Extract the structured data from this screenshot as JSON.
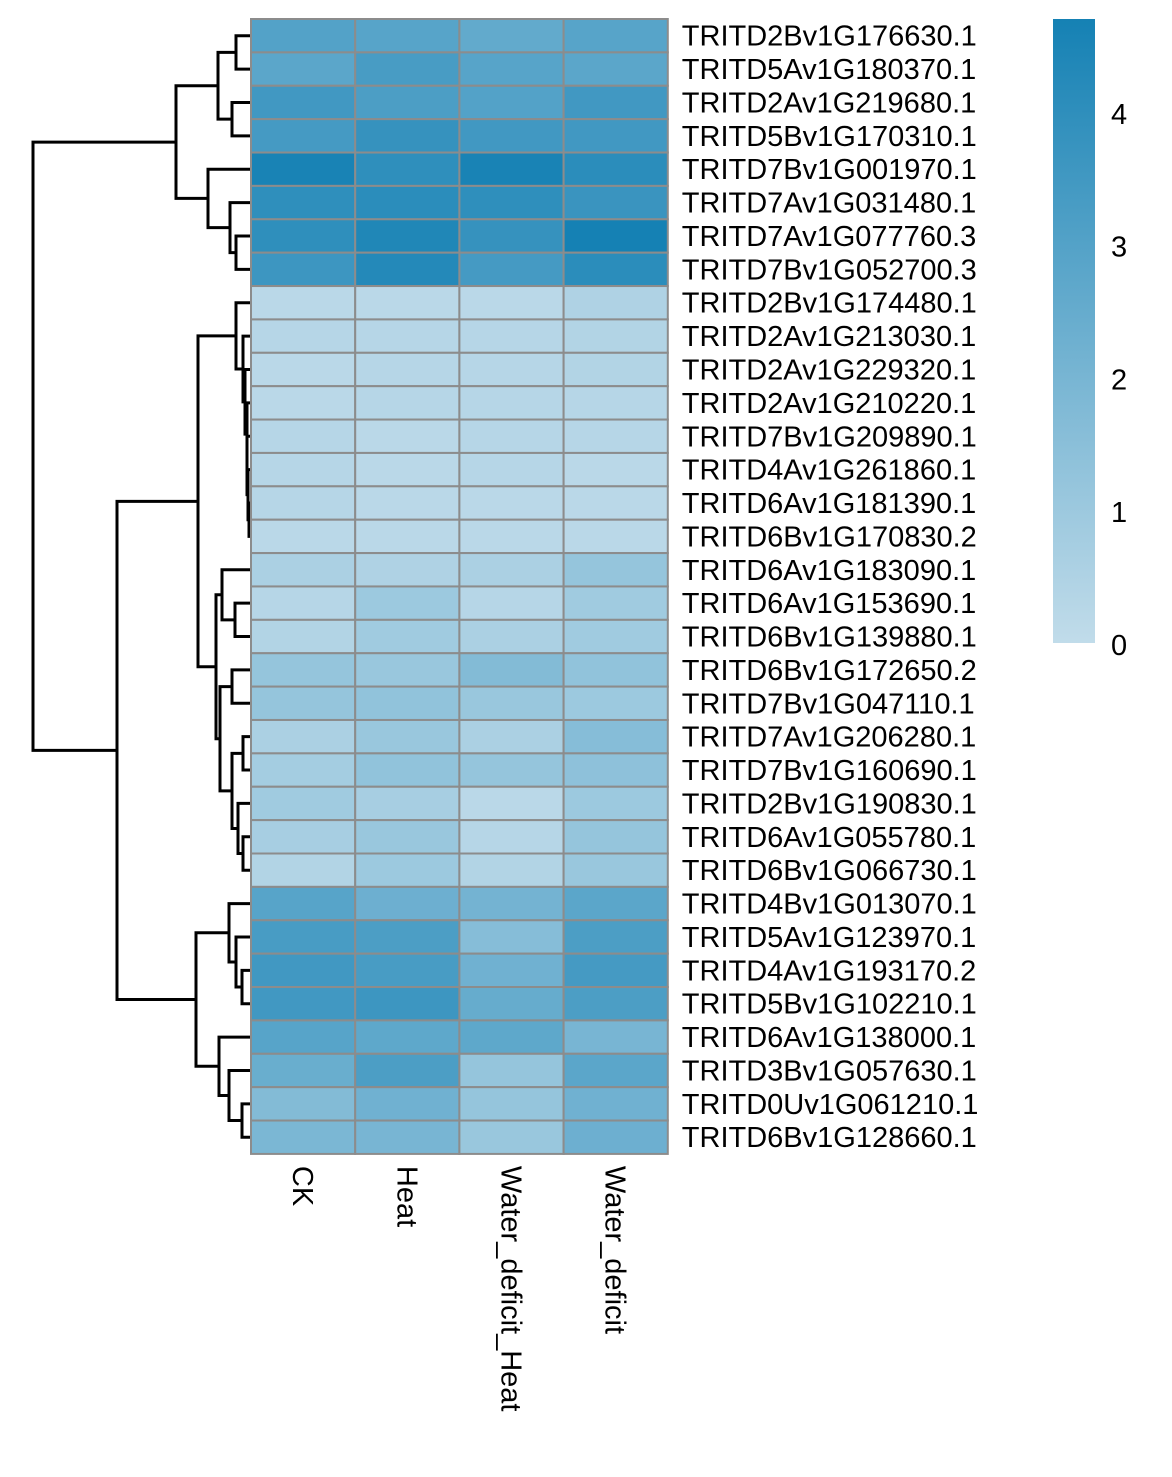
{
  "chart_data": {
    "type": "heatmap",
    "columns": [
      "CK",
      "Heat",
      "Water_deficit_Heat",
      "Water_deficit"
    ],
    "rows": [
      "TRITD2Bv1G176630.1",
      "TRITD5Av1G180370.1",
      "TRITD2Av1G219680.1",
      "TRITD5Bv1G170310.1",
      "TRITD7Bv1G001970.1",
      "TRITD7Av1G031480.1",
      "TRITD7Av1G077760.3",
      "TRITD7Bv1G052700.3",
      "TRITD2Bv1G174480.1",
      "TRITD2Av1G213030.1",
      "TRITD2Av1G229320.1",
      "TRITD2Av1G210220.1",
      "TRITD7Bv1G209890.1",
      "TRITD4Av1G261860.1",
      "TRITD6Av1G181390.1",
      "TRITD6Bv1G170830.2",
      "TRITD6Av1G183090.1",
      "TRITD6Av1G153690.1",
      "TRITD6Bv1G139880.1",
      "TRITD6Bv1G172650.2",
      "TRITD7Bv1G047110.1",
      "TRITD7Av1G206280.1",
      "TRITD7Bv1G160690.1",
      "TRITD2Bv1G190830.1",
      "TRITD6Av1G055780.1",
      "TRITD6Bv1G066730.1",
      "TRITD4Bv1G013070.1",
      "TRITD5Av1G123970.1",
      "TRITD4Av1G193170.2",
      "TRITD5Bv1G102210.1",
      "TRITD6Av1G138000.1",
      "TRITD3Bv1G057630.1",
      "TRITD0Uv1G061210.1",
      "TRITD6Bv1G128660.1"
    ],
    "values": [
      [
        3.0,
        2.9,
        2.6,
        2.9
      ],
      [
        2.8,
        3.3,
        2.9,
        2.8
      ],
      [
        3.5,
        3.2,
        3.0,
        3.5
      ],
      [
        3.4,
        3.8,
        3.5,
        3.5
      ],
      [
        4.6,
        4.0,
        4.6,
        4.1
      ],
      [
        4.0,
        4.1,
        4.0,
        3.7
      ],
      [
        4.0,
        4.4,
        3.8,
        4.7
      ],
      [
        3.6,
        4.3,
        3.4,
        4.1
      ],
      [
        0.2,
        0.2,
        0.2,
        0.5
      ],
      [
        0.3,
        0.3,
        0.3,
        0.4
      ],
      [
        0.2,
        0.3,
        0.3,
        0.4
      ],
      [
        0.2,
        0.3,
        0.3,
        0.3
      ],
      [
        0.3,
        0.2,
        0.3,
        0.3
      ],
      [
        0.3,
        0.2,
        0.3,
        0.2
      ],
      [
        0.3,
        0.2,
        0.2,
        0.2
      ],
      [
        0.2,
        0.2,
        0.2,
        0.2
      ],
      [
        0.6,
        0.5,
        0.6,
        1.2
      ],
      [
        0.3,
        1.0,
        0.3,
        0.9
      ],
      [
        0.4,
        0.9,
        0.6,
        0.9
      ],
      [
        1.2,
        1.1,
        1.7,
        1.3
      ],
      [
        1.2,
        1.3,
        1.1,
        1.0
      ],
      [
        0.6,
        1.1,
        0.6,
        1.6
      ],
      [
        0.8,
        1.3,
        1.2,
        1.4
      ],
      [
        0.9,
        0.7,
        0.2,
        1.0
      ],
      [
        0.7,
        1.1,
        0.3,
        1.2
      ],
      [
        0.4,
        1.0,
        0.4,
        1.1
      ],
      [
        2.9,
        2.3,
        2.1,
        2.8
      ],
      [
        3.3,
        3.2,
        1.6,
        3.2
      ],
      [
        3.5,
        3.3,
        2.2,
        3.4
      ],
      [
        3.5,
        3.6,
        2.5,
        3.2
      ],
      [
        2.9,
        2.7,
        2.7,
        2.0
      ],
      [
        2.4,
        3.2,
        1.2,
        2.8
      ],
      [
        1.7,
        2.2,
        1.2,
        2.2
      ],
      [
        1.9,
        2.0,
        1.1,
        2.3
      ]
    ],
    "colorbar": {
      "ticks": [
        "0",
        "1",
        "2",
        "3",
        "4"
      ],
      "min": 0,
      "max": 4.7,
      "low_color": "#c1dcea",
      "high_color": "#1581b4"
    },
    "row_dendrogram": true,
    "legend": "right"
  }
}
